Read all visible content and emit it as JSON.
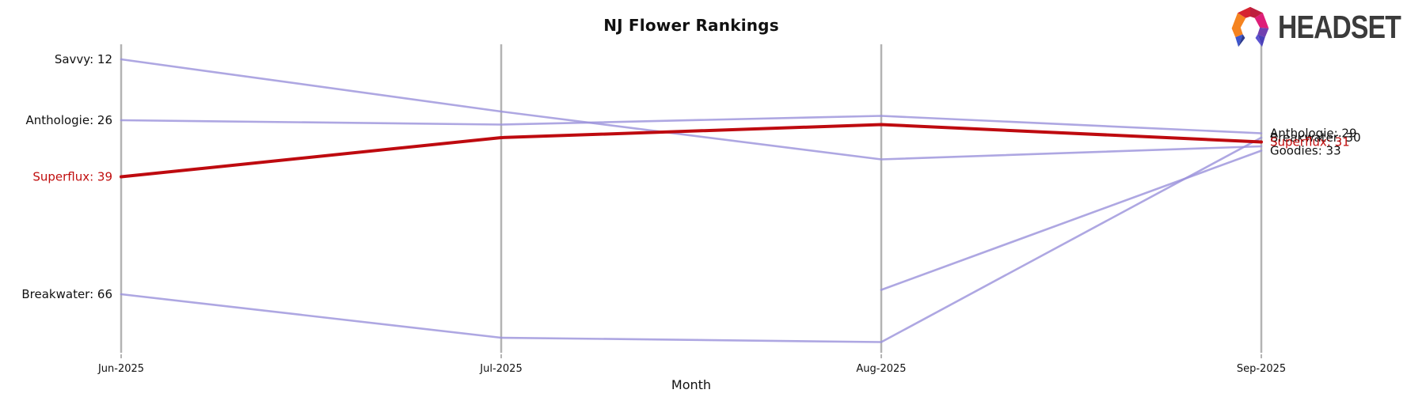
{
  "title": "NJ Flower Rankings",
  "branding": {
    "logo_text": "HEADSET"
  },
  "colors": {
    "axis": "#b3b3b3",
    "purple_series": "#9a91db",
    "red_series": "#be0a0f",
    "label_black": "#111111",
    "label_red": "#c00d0d",
    "logo_text": "#3b3b3b"
  },
  "chart_data": {
    "type": "line",
    "subtype": "bump-ranking-parallel-axes",
    "title": "NJ Flower Rankings",
    "xlabel": "Month",
    "x": [
      "Jun-2025",
      "Jul-2025",
      "Aug-2025",
      "Sep-2025"
    ],
    "y_axis": "rank (lower = higher on chart, axis inverted, unlabeled)",
    "rank_range_estimate": [
      12,
      77
    ],
    "legend": "none (direct line labels at left and right axis ends)",
    "grid": "vertical month axes only",
    "series": [
      {
        "name": "Savvy",
        "role": "normal",
        "values": [
          12,
          24,
          35,
          32
        ],
        "label_left": "Savvy: 12",
        "label_right": null
      },
      {
        "name": "Anthologie",
        "role": "normal",
        "values": [
          26,
          27,
          25,
          29
        ],
        "label_left": "Anthologie: 26",
        "label_right": "Anthologie: 29"
      },
      {
        "name": "Breakwater",
        "role": "normal",
        "values": [
          66,
          76,
          77,
          30
        ],
        "label_left": "Breakwater: 66",
        "label_right": "Breakwater: 30"
      },
      {
        "name": "Goodies",
        "role": "normal",
        "values": [
          null,
          null,
          65,
          33
        ],
        "label_left": null,
        "label_right": "Goodies: 33"
      },
      {
        "name": "Superflux",
        "role": "highlighted",
        "values": [
          39,
          30,
          27,
          31
        ],
        "label_left": "Superflux: 39",
        "label_right": "Superflux: 31"
      }
    ]
  }
}
